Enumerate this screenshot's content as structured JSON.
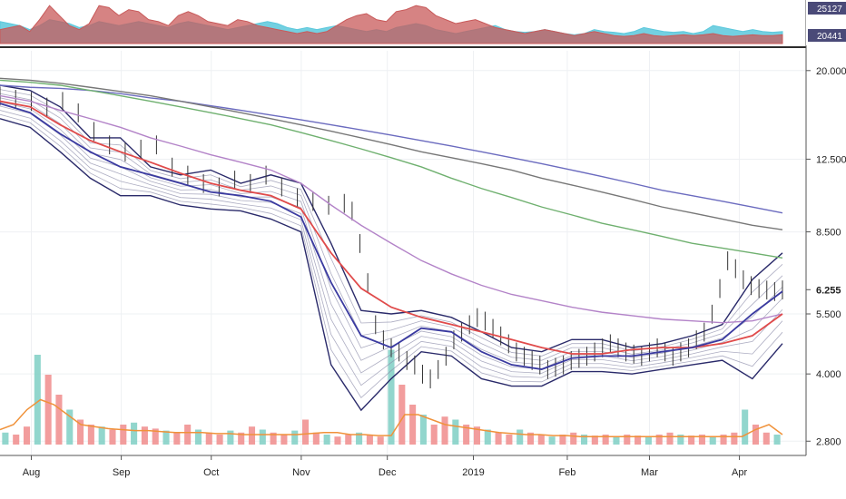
{
  "chart_data": {
    "type": "line",
    "symbol_note": "",
    "top_panel": {
      "type": "area",
      "y_labels": [
        "25127",
        "20441"
      ],
      "series": [
        {
          "color": "#5bc8dc",
          "values": [
            0.55,
            0.5,
            0.45,
            0.35,
            0.45,
            0.6,
            0.55,
            0.5,
            0.4,
            0.45,
            0.55,
            0.5,
            0.45,
            0.5,
            0.55,
            0.5,
            0.45,
            0.4,
            0.5,
            0.55,
            0.5,
            0.45,
            0.4,
            0.35,
            0.4,
            0.45,
            0.5,
            0.55,
            0.5,
            0.4,
            0.35,
            0.4,
            0.35,
            0.4,
            0.45,
            0.4,
            0.35,
            0.3,
            0.35,
            0.3,
            0.4,
            0.45,
            0.5,
            0.45,
            0.35,
            0.3,
            0.25,
            0.3,
            0.35,
            0.4,
            0.45,
            0.35,
            0.3,
            0.28,
            0.3,
            0.35,
            0.3,
            0.25,
            0.22,
            0.25,
            0.35,
            0.3,
            0.28,
            0.25,
            0.3,
            0.4,
            0.35,
            0.3,
            0.28,
            0.3,
            0.25,
            0.3,
            0.45,
            0.4,
            0.35,
            0.3,
            0.35,
            0.3,
            0.28,
            0.3
          ]
        },
        {
          "color": "#c85a5a",
          "values": [
            0.35,
            0.4,
            0.45,
            0.3,
            0.6,
            0.95,
            0.7,
            0.45,
            0.35,
            0.5,
            0.95,
            0.9,
            0.7,
            0.85,
            0.8,
            0.6,
            0.55,
            0.45,
            0.7,
            0.8,
            0.7,
            0.55,
            0.5,
            0.45,
            0.6,
            0.55,
            0.45,
            0.4,
            0.35,
            0.3,
            0.25,
            0.3,
            0.25,
            0.3,
            0.45,
            0.6,
            0.7,
            0.75,
            0.6,
            0.55,
            0.8,
            0.85,
            0.95,
            0.9,
            0.7,
            0.6,
            0.5,
            0.55,
            0.6,
            0.5,
            0.4,
            0.35,
            0.3,
            0.25,
            0.3,
            0.35,
            0.3,
            0.25,
            0.2,
            0.25,
            0.3,
            0.25,
            0.2,
            0.18,
            0.2,
            0.25,
            0.2,
            0.18,
            0.2,
            0.22,
            0.2,
            0.22,
            0.25,
            0.2,
            0.18,
            0.2,
            0.22,
            0.2,
            0.2,
            0.22
          ]
        }
      ]
    },
    "y_axis": {
      "scale": "log",
      "tick_labels": [
        "20.000",
        "12.500",
        "8.500",
        "6.255",
        "5.500",
        "4.000",
        "2.800"
      ],
      "tick_values": [
        20,
        12.5,
        8.5,
        6.255,
        5.5,
        4.0,
        2.8
      ],
      "last_price": "6.255",
      "range": [
        2.75,
        22
      ]
    },
    "x_axis": {
      "tick_labels": [
        "Aug",
        "Sep",
        "Oct",
        "Nov",
        "Dec",
        "2019",
        "Feb",
        "Mar",
        "Apr"
      ],
      "tick_positions": [
        0.04,
        0.155,
        0.27,
        0.385,
        0.495,
        0.605,
        0.725,
        0.83,
        0.945
      ]
    },
    "price_series": {
      "x": [
        0,
        0.02,
        0.04,
        0.06,
        0.08,
        0.1,
        0.12,
        0.14,
        0.16,
        0.18,
        0.2,
        0.22,
        0.24,
        0.26,
        0.28,
        0.3,
        0.32,
        0.34,
        0.36,
        0.38,
        0.4,
        0.42,
        0.44,
        0.45,
        0.46,
        0.47,
        0.48,
        0.49,
        0.5,
        0.51,
        0.52,
        0.53,
        0.54,
        0.55,
        0.56,
        0.57,
        0.58,
        0.59,
        0.6,
        0.61,
        0.62,
        0.63,
        0.64,
        0.65,
        0.66,
        0.67,
        0.68,
        0.69,
        0.7,
        0.71,
        0.72,
        0.73,
        0.74,
        0.75,
        0.76,
        0.77,
        0.78,
        0.79,
        0.8,
        0.81,
        0.82,
        0.83,
        0.84,
        0.85,
        0.86,
        0.87,
        0.88,
        0.89,
        0.9,
        0.91,
        0.92,
        0.93,
        0.94,
        0.95,
        0.96,
        0.97,
        0.98,
        0.99,
        1.0
      ],
      "values": [
        17.5,
        17.2,
        17.0,
        16.5,
        17.0,
        16.0,
        14.5,
        13.5,
        13.0,
        13.2,
        13.5,
        12.0,
        11.5,
        11.0,
        10.8,
        11.2,
        11.0,
        11.5,
        10.8,
        10.2,
        10.0,
        9.8,
        9.9,
        9.5,
        8.0,
        6.5,
        5.2,
        4.8,
        4.6,
        4.5,
        4.3,
        4.2,
        4.0,
        3.9,
        4.1,
        4.4,
        4.8,
        5.0,
        5.2,
        5.4,
        5.3,
        5.1,
        4.9,
        4.7,
        4.5,
        4.4,
        4.3,
        4.2,
        4.1,
        4.15,
        4.2,
        4.3,
        4.35,
        4.4,
        4.5,
        4.6,
        4.7,
        4.6,
        4.5,
        4.45,
        4.4,
        4.5,
        4.6,
        4.5,
        4.4,
        4.5,
        4.6,
        4.8,
        5.0,
        5.5,
        6.3,
        7.3,
        7.0,
        6.6,
        6.4,
        6.3,
        6.25,
        6.2,
        6.255
      ]
    },
    "series": [
      {
        "color": "#6b6bbf",
        "values": [
          18.5,
          18.3,
          18.2,
          18.0,
          17.7,
          17.3,
          17.0,
          16.6,
          16.2,
          15.8,
          15.4,
          15.0,
          14.6,
          14.2,
          13.8,
          13.4,
          13.0,
          12.6,
          12.2,
          11.8,
          11.4,
          11.0,
          10.6,
          10.3,
          10.0,
          9.7,
          9.4
        ]
      },
      {
        "color": "#777777",
        "values": [
          19.2,
          19.0,
          18.7,
          18.3,
          17.9,
          17.5,
          17.0,
          16.5,
          16.0,
          15.5,
          15.0,
          14.5,
          14.0,
          13.5,
          13.0,
          12.6,
          12.2,
          11.8,
          11.3,
          10.9,
          10.5,
          10.1,
          9.7,
          9.4,
          9.1,
          8.8,
          8.6
        ]
      },
      {
        "color": "#6fb06f",
        "values": [
          19.0,
          18.8,
          18.5,
          18.0,
          17.5,
          17.0,
          16.5,
          16.0,
          15.5,
          15.0,
          14.4,
          13.8,
          13.2,
          12.6,
          12.0,
          11.3,
          10.7,
          10.2,
          9.7,
          9.3,
          8.9,
          8.6,
          8.3,
          8.0,
          7.8,
          7.6,
          7.4
        ]
      },
      {
        "color": "#b383c8",
        "values": [
          17.5,
          17.0,
          16.2,
          15.5,
          14.8,
          14.0,
          13.4,
          12.8,
          12.3,
          11.8,
          11.0,
          9.8,
          8.8,
          8.0,
          7.3,
          6.8,
          6.4,
          6.1,
          5.9,
          5.7,
          5.55,
          5.45,
          5.35,
          5.3,
          5.25,
          5.3,
          5.5
        ]
      },
      {
        "color": "#e04b4b",
        "values": [
          17.0,
          16.5,
          15.0,
          13.8,
          13.0,
          12.3,
          11.6,
          11.0,
          10.6,
          10.3,
          9.6,
          7.6,
          6.3,
          5.7,
          5.4,
          5.2,
          5.0,
          4.8,
          4.6,
          4.45,
          4.45,
          4.55,
          4.6,
          4.6,
          4.7,
          4.9,
          5.5
        ]
      },
      {
        "color": "#3a3aa0",
        "values": [
          16.8,
          16.0,
          14.3,
          13.0,
          12.0,
          11.5,
          11.0,
          10.5,
          10.3,
          10.0,
          9.2,
          6.5,
          4.9,
          4.6,
          5.1,
          5.0,
          4.5,
          4.2,
          4.1,
          4.35,
          4.4,
          4.4,
          4.5,
          4.6,
          4.8,
          5.5,
          6.2
        ]
      }
    ],
    "bands": {
      "color": "#2a2a6a",
      "upper": [
        18.5,
        18.0,
        16.5,
        14.0,
        14.0,
        12.0,
        11.5,
        11.8,
        11.0,
        11.5,
        11.0,
        8.0,
        5.6,
        5.5,
        5.6,
        5.4,
        5.0,
        4.6,
        4.5,
        4.8,
        4.8,
        4.6,
        4.7,
        4.9,
        5.2,
        6.6,
        7.6
      ],
      "lower": [
        15.5,
        14.8,
        13.0,
        11.3,
        10.3,
        10.3,
        9.8,
        9.6,
        9.5,
        9.1,
        8.5,
        4.2,
        3.3,
        3.9,
        4.5,
        4.4,
        3.9,
        3.75,
        3.75,
        4.05,
        4.05,
        4.0,
        4.1,
        4.2,
        4.3,
        3.9,
        4.7
      ]
    },
    "volume": {
      "bar_colors": [
        "#f08c8c",
        "#7fcfc4"
      ],
      "ma_color": "#f0923a",
      "values": [
        0.12,
        0.1,
        0.18,
        0.9,
        0.7,
        0.5,
        0.35,
        0.25,
        0.2,
        0.18,
        0.15,
        0.2,
        0.22,
        0.18,
        0.16,
        0.14,
        0.12,
        0.2,
        0.15,
        0.12,
        0.1,
        0.14,
        0.12,
        0.18,
        0.15,
        0.12,
        0.1,
        0.14,
        0.25,
        0.12,
        0.1,
        0.08,
        0.1,
        0.12,
        0.1,
        0.08,
        0.95,
        0.6,
        0.4,
        0.3,
        0.2,
        0.28,
        0.25,
        0.2,
        0.18,
        0.15,
        0.12,
        0.1,
        0.15,
        0.12,
        0.1,
        0.08,
        0.1,
        0.12,
        0.1,
        0.09,
        0.1,
        0.08,
        0.1,
        0.09,
        0.08,
        0.1,
        0.12,
        0.1,
        0.09,
        0.1,
        0.08,
        0.1,
        0.12,
        0.35,
        0.2,
        0.12,
        0.1
      ],
      "ma": [
        0.15,
        0.2,
        0.35,
        0.45,
        0.4,
        0.3,
        0.2,
        0.18,
        0.16,
        0.15,
        0.14,
        0.14,
        0.13,
        0.12,
        0.12,
        0.12,
        0.11,
        0.11,
        0.1,
        0.1,
        0.1,
        0.1,
        0.1,
        0.11,
        0.12,
        0.12,
        0.1,
        0.1,
        0.09,
        0.09,
        0.3,
        0.3,
        0.25,
        0.2,
        0.18,
        0.16,
        0.14,
        0.12,
        0.11,
        0.1,
        0.1,
        0.09,
        0.09,
        0.08,
        0.08,
        0.08,
        0.08,
        0.08,
        0.08,
        0.08,
        0.08,
        0.08,
        0.08,
        0.08,
        0.08,
        0.08,
        0.15,
        0.2,
        0.1
      ]
    }
  }
}
